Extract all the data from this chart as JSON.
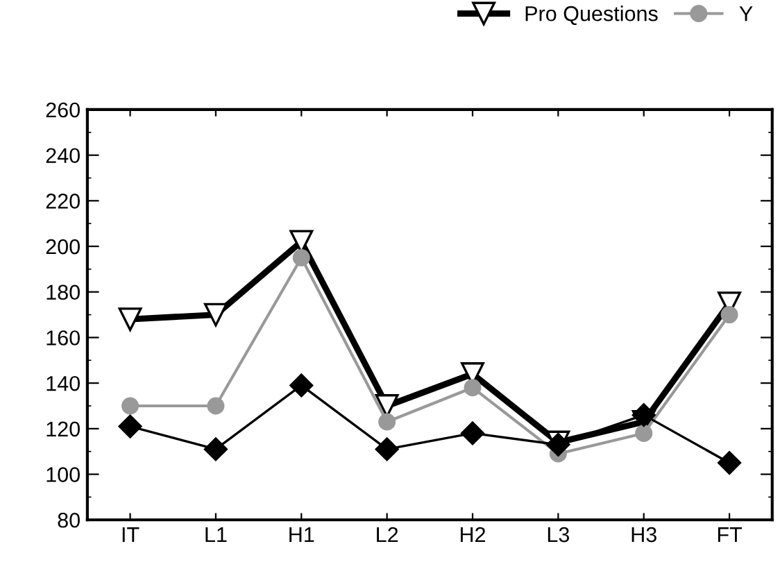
{
  "chart_data": {
    "type": "line",
    "categories": [
      "IT",
      "L1",
      "H1",
      "L2",
      "H2",
      "L3",
      "H3",
      "FT"
    ],
    "series": [
      {
        "name": "Pro Questions",
        "color": "#000000",
        "marker": "triangle",
        "values": [
          168,
          170,
          202,
          130,
          144,
          114,
          123,
          175
        ]
      },
      {
        "name": "Y",
        "color": "#999999",
        "marker": "circle",
        "values": [
          130,
          130,
          195,
          123,
          138,
          109,
          118,
          170
        ]
      },
      {
        "color": "#000000",
        "marker": "diamond",
        "values": [
          121,
          111,
          139,
          111,
          118,
          113,
          126,
          105
        ]
      }
    ],
    "ylim": [
      80,
      260
    ],
    "yticks": [
      80,
      100,
      120,
      140,
      160,
      180,
      200,
      220,
      240,
      260
    ],
    "grid": false,
    "legend": "top right"
  }
}
